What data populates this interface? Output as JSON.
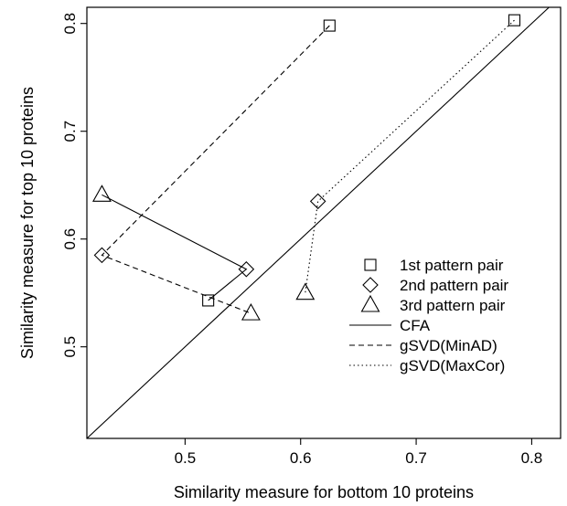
{
  "chart_data": {
    "type": "line",
    "xlabel": "Similarity measure for bottom 10 proteins",
    "ylabel": "Similarity measure for top 10 proteins",
    "xlim": [
      0.415,
      0.825
    ],
    "ylim": [
      0.415,
      0.815
    ],
    "xticks": [
      0.5,
      0.6,
      0.7,
      0.8
    ],
    "yticks": [
      0.5,
      0.6,
      0.7,
      0.8
    ],
    "xtick_labels": [
      "0.5",
      "0.6",
      "0.7",
      "0.8"
    ],
    "ytick_labels": [
      "0.5",
      "0.6",
      "0.7",
      "0.8"
    ],
    "reference_line": "y = x",
    "legend_placement": "center-right",
    "markers": [
      {
        "name": "1st pattern pair",
        "shape": "square"
      },
      {
        "name": "2nd pattern pair",
        "shape": "diamond"
      },
      {
        "name": "3rd pattern pair",
        "shape": "triangle"
      }
    ],
    "line_styles": [
      {
        "name": "CFA",
        "dash": "solid"
      },
      {
        "name": "gSVD(MinAD)",
        "dash": "dashed"
      },
      {
        "name": "gSVD(MaxCor)",
        "dash": "dotted"
      }
    ],
    "series": [
      {
        "name": "CFA",
        "points": [
          {
            "x": 0.52,
            "y": 0.543,
            "marker": "square"
          },
          {
            "x": 0.553,
            "y": 0.572,
            "marker": "diamond"
          },
          {
            "x": 0.428,
            "y": 0.641,
            "marker": "triangle"
          }
        ]
      },
      {
        "name": "gSVD(MinAD)",
        "points": [
          {
            "x": 0.625,
            "y": 0.798,
            "marker": "square"
          },
          {
            "x": 0.428,
            "y": 0.585,
            "marker": "diamond"
          },
          {
            "x": 0.557,
            "y": 0.531,
            "marker": "triangle"
          }
        ]
      },
      {
        "name": "gSVD(MaxCor)",
        "points": [
          {
            "x": 0.785,
            "y": 0.803,
            "marker": "square"
          },
          {
            "x": 0.615,
            "y": 0.635,
            "marker": "diamond"
          },
          {
            "x": 0.604,
            "y": 0.55,
            "marker": "triangle"
          }
        ]
      }
    ]
  }
}
